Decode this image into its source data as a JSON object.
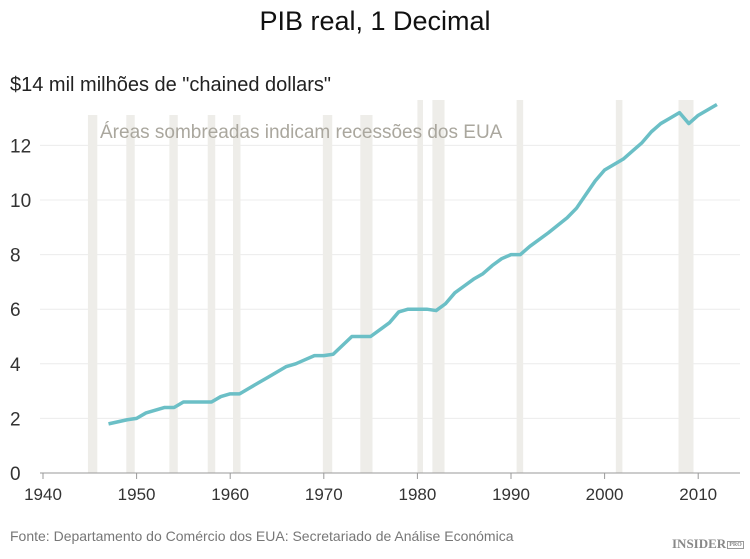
{
  "chart_data": {
    "type": "line",
    "title": "PIB real, 1 Decimal",
    "ylabel": "$14 mil milhões de \"chained dollars\"",
    "annotation": "Áreas sombreadas indicam recessões dos EUA",
    "source": "Fonte: Departamento do Comércio dos EUA: Secretariado de Análise Económica",
    "logo": "INSIDER",
    "logo_badge": "PRO",
    "xlim": [
      1940,
      2015
    ],
    "ylim": [
      0,
      14
    ],
    "x_ticks": [
      1940,
      1950,
      1960,
      1970,
      1980,
      1990,
      2000,
      2010
    ],
    "y_ticks": [
      0,
      2,
      4,
      6,
      8,
      10,
      12
    ],
    "grid": "horizontal",
    "line_color": "#6bbfc6",
    "recession_color": "#eeede9",
    "recessions": [
      [
        1944.8,
        1945.8
      ],
      [
        1948.9,
        1949.8
      ],
      [
        1953.5,
        1954.4
      ],
      [
        1957.6,
        1958.4
      ],
      [
        1960.3,
        1961.1
      ],
      [
        1969.9,
        1970.9
      ],
      [
        1973.9,
        1975.2
      ],
      [
        1980.0,
        1980.6
      ],
      [
        1981.6,
        1982.9
      ],
      [
        1990.6,
        1991.3
      ],
      [
        2001.2,
        2001.9
      ],
      [
        2007.9,
        2009.5
      ]
    ],
    "x": [
      1947,
      1949,
      1950,
      1951,
      1953,
      1954,
      1955,
      1957,
      1958,
      1959,
      1960,
      1961,
      1962,
      1963,
      1964,
      1966,
      1967,
      1968,
      1969,
      1970,
      1971,
      1973,
      1974,
      1975,
      1977,
      1978,
      1979,
      1980,
      1981,
      1982,
      1983,
      1984,
      1985,
      1986,
      1987,
      1988,
      1989,
      1990,
      1991,
      1992,
      1994,
      1996,
      1997,
      1998,
      1999,
      2000,
      2001,
      2002,
      2003,
      2004,
      2005,
      2006,
      2007,
      2008,
      2009,
      2010,
      2012
    ],
    "y": [
      1.8,
      1.95,
      2.0,
      2.2,
      2.4,
      2.4,
      2.6,
      2.6,
      2.6,
      2.8,
      2.9,
      2.9,
      3.1,
      3.3,
      3.5,
      3.9,
      4.0,
      4.15,
      4.3,
      4.3,
      4.35,
      5.0,
      5.0,
      5.0,
      5.5,
      5.9,
      6.0,
      6.0,
      6.0,
      5.95,
      6.2,
      6.6,
      6.85,
      7.1,
      7.3,
      7.6,
      7.85,
      8.0,
      8.0,
      8.3,
      8.8,
      9.35,
      9.7,
      10.2,
      10.7,
      11.1,
      11.3,
      11.5,
      11.8,
      12.1,
      12.5,
      12.8,
      13.0,
      13.2,
      12.8,
      13.1,
      13.5
    ]
  }
}
